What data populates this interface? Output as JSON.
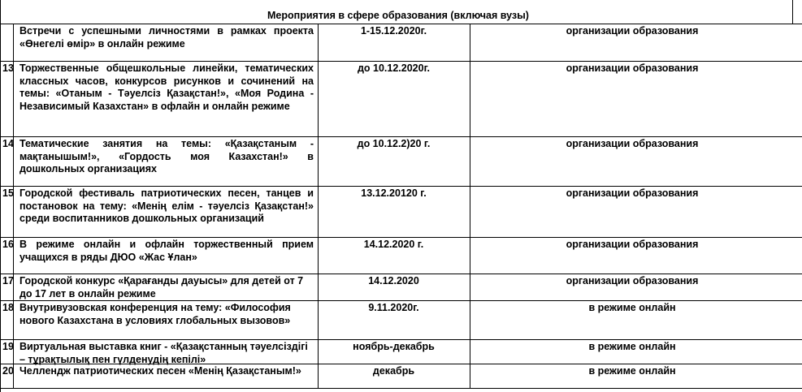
{
  "section_title": "Мероприятия в сфере образования (включая вузы)",
  "rows": [
    {
      "num": "",
      "event": "Встречи с успешными личностями в рамках проекта «Өнегелі өмір» в онлайн режиме",
      "date": "1-15.12.2020г.",
      "place": "организации образования"
    },
    {
      "num": "13",
      "event": "Торжественные общешкольные линейки, тематических классных часов, конкурсов рисунков и сочинений на темы: «Отаным - Тәуелсіз Қазақстан!», «Моя Родина - Независимый Казахстан» в офлайн и онлайн режиме",
      "date": "до 10.12.2020г.",
      "place": "организации образования"
    },
    {
      "num": "14",
      "event": "Тематические занятия на темы: «Қазақстаным - мақтанышым!», «Гордость моя Казахстан!» в дошкольных организациях",
      "date": "до 10.12.2)20  г.",
      "place": "организации образования"
    },
    {
      "num": "15",
      "event": "Городской фестиваль патриотических песен, танцев и постановок на тему: «Менің елім - тәуелсіз Қазақстан!» среди воспитанников дошкольных организаций",
      "date": "13.12.20120  г.",
      "place": "организации образования"
    },
    {
      "num": "16",
      "event": "В режиме онлайн и офлайн торжественный прием учащихся в ряды ДЮО «Жас Ұлан»",
      "date": "14.12.2020  г.",
      "place": "организации образования"
    },
    {
      "num": "17",
      "event": "Городской  конкурс  «Қарағанды дауысы» для детей от 7 до 17 лет в онлайн режиме",
      "date": "14.12.2020",
      "place": "организации образования"
    },
    {
      "num": "18",
      "event": "Внутривузовская конференция на тему: «Философия нового Казахстана в условиях глобальных вызовов»",
      "date": "9.11.2020г.",
      "place": "в режиме онлайн"
    },
    {
      "num": "19",
      "event": "Виртуальная выставка книг -  «Қазақстанның тәуелсіздігі – тұрақтылық пен гүлденудің кепілі»",
      "date": "ноябрь-декабрь",
      "place": "в режиме онлайн"
    },
    {
      "num": "20",
      "event": "Челлендж патриотических песен «Менің Қазақстаным!»",
      "date": "декабрь",
      "place": "в режиме онлайн"
    }
  ]
}
